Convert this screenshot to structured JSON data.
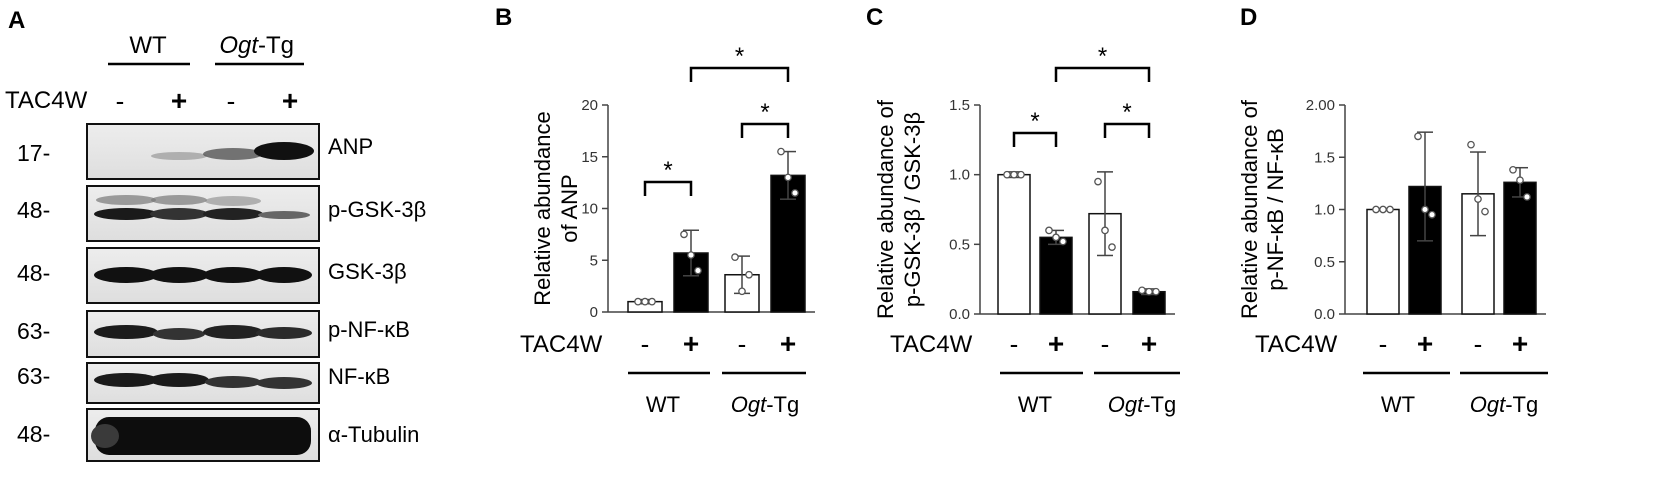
{
  "panels": {
    "A": {
      "letter": "A",
      "group_labels": [
        "WT",
        "Ogt",
        "-Tg"
      ],
      "tac_label": "TAC4W",
      "tac_signs": [
        "-",
        "+",
        "-",
        "+"
      ],
      "blots": [
        {
          "mw": "17-",
          "label": "ANP"
        },
        {
          "mw": "48-",
          "label": "p-GSK-3β"
        },
        {
          "mw": "48-",
          "label": "GSK-3β"
        },
        {
          "mw": "63-",
          "label": "p-NF-κB"
        },
        {
          "mw": "63-",
          "label": "NF-κB"
        },
        {
          "mw": "48-",
          "label": "α-Tubulin"
        }
      ]
    },
    "B": {
      "letter": "B"
    },
    "C": {
      "letter": "C"
    },
    "D": {
      "letter": "D"
    }
  },
  "chart_data": [
    {
      "panel": "B",
      "type": "bar",
      "categories": [
        "WT -",
        "WT +",
        "Ogt-Tg -",
        "Ogt-Tg +"
      ],
      "values": [
        1.0,
        5.7,
        3.6,
        13.2
      ],
      "errors": [
        0.2,
        2.2,
        1.8,
        2.3
      ],
      "points": [
        [
          1.0,
          1.0,
          1.0
        ],
        [
          7.5,
          5.5,
          4.0
        ],
        [
          5.3,
          2.0,
          3.6
        ],
        [
          15.5,
          13.0,
          11.5
        ]
      ],
      "bar_colors": [
        "#ffffff",
        "#000000",
        "#ffffff",
        "#000000"
      ],
      "ylabel_lines": [
        "Relative  abundance",
        "of ANP"
      ],
      "yticks": [
        0,
        5,
        10,
        15,
        20
      ],
      "ytick_labels": [
        "0",
        "5",
        "10",
        "15",
        "20"
      ],
      "ylim": [
        0,
        20
      ],
      "tac_label": "TAC4W",
      "tac_signs": [
        "-",
        "+",
        "-",
        "+"
      ],
      "group_labels": [
        "WT",
        "Ogt",
        "-Tg"
      ],
      "significance": [
        {
          "from": 0,
          "to": 1,
          "label": "*"
        },
        {
          "from": 2,
          "to": 3,
          "label": "*"
        },
        {
          "from": 1,
          "to": 3,
          "label": "*"
        }
      ]
    },
    {
      "panel": "C",
      "type": "bar",
      "categories": [
        "WT -",
        "WT +",
        "Ogt-Tg -",
        "Ogt-Tg +"
      ],
      "values": [
        1.0,
        0.55,
        0.72,
        0.16
      ],
      "errors": [
        0.02,
        0.05,
        0.3,
        0.02
      ],
      "points": [
        [
          1.0,
          1.0,
          1.0
        ],
        [
          0.6,
          0.55,
          0.52
        ],
        [
          0.95,
          0.6,
          0.48
        ],
        [
          0.17,
          0.16,
          0.16
        ]
      ],
      "bar_colors": [
        "#ffffff",
        "#000000",
        "#ffffff",
        "#000000"
      ],
      "ylabel_lines": [
        "Relative  abundance of",
        "p-GSK-3β / GSK-3β"
      ],
      "yticks": [
        0.0,
        0.5,
        1.0,
        1.5
      ],
      "ytick_labels": [
        "0.0",
        "0.5",
        "1.0",
        "1.5"
      ],
      "ylim": [
        0,
        1.5
      ],
      "tac_label": "TAC4W",
      "tac_signs": [
        "-",
        "+",
        "-",
        "+"
      ],
      "group_labels": [
        "WT",
        "Ogt",
        "-Tg"
      ],
      "significance": [
        {
          "from": 0,
          "to": 1,
          "label": "*"
        },
        {
          "from": 2,
          "to": 3,
          "label": "*"
        },
        {
          "from": 1,
          "to": 3,
          "label": "*"
        }
      ]
    },
    {
      "panel": "D",
      "type": "bar",
      "categories": [
        "WT -",
        "WT +",
        "Ogt-Tg -",
        "Ogt-Tg +"
      ],
      "values": [
        1.0,
        1.22,
        1.15,
        1.26
      ],
      "errors": [
        0.01,
        0.52,
        0.4,
        0.14
      ],
      "points": [
        [
          1.0,
          1.0,
          1.0
        ],
        [
          1.7,
          1.0,
          0.95
        ],
        [
          1.62,
          1.1,
          0.98
        ],
        [
          1.38,
          1.28,
          1.12
        ]
      ],
      "bar_colors": [
        "#ffffff",
        "#000000",
        "#ffffff",
        "#000000"
      ],
      "ylabel_lines": [
        "Relative  abundance of",
        "p-NF-κB / NF-κB"
      ],
      "yticks": [
        0.0,
        0.5,
        1.0,
        1.5,
        2.0
      ],
      "ytick_labels": [
        "0.0",
        "0.5",
        "1.0",
        "1.5",
        "2.00"
      ],
      "ylim": [
        0,
        2.0
      ],
      "tac_label": "TAC4W",
      "tac_signs": [
        "-",
        "+",
        "-",
        "+"
      ],
      "group_labels": [
        "WT",
        "Ogt",
        "-Tg"
      ],
      "significance": []
    }
  ]
}
